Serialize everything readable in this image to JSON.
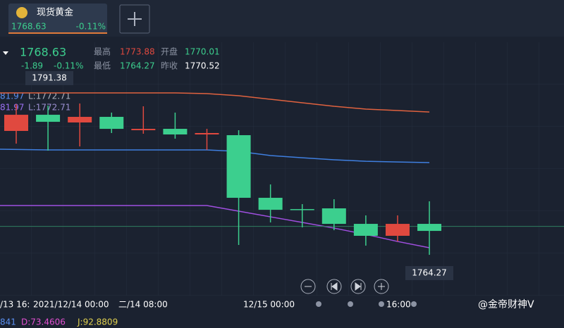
{
  "tab": {
    "name": "现货黄金"
  },
  "quote": {
    "change": "-1.89",
    "change_pct": "-0.11%",
    "high_label": "最高",
    "high": "1773.88",
    "open_label": "开盘",
    "open": "1770.01",
    "low_label": "最低",
    "low": "1764.27",
    "prev_close_label": "昨收",
    "prev_close": "1770.52"
  },
  "indicators": {
    "boll": [
      {
        "value": "81.97",
        "l": "L:1772.71"
      },
      {
        "value": "81.97",
        "l": "L:1772.71"
      }
    ],
    "kdj": [
      "841",
      "D:73.4606",
      "J:92.8809"
    ]
  },
  "watermark": "@金帝财神V",
  "chart_data": {
    "type": "candlestick",
    "ylim": [
      1758.55,
      1796.89
    ],
    "up_color": "#e0493f",
    "down_color": "#3ccf8e",
    "open": [
      1783.28,
      1785.76,
      1784.58,
      1785.44,
      1783.39,
      1783.6,
      1782.74,
      1782.63,
      1773.02,
      1771.29,
      1771.4,
      1769.02,
      1767.19,
      1769.02
    ],
    "high": [
      1787.38,
      1787.17,
      1787.49,
      1786.09,
      1787.06,
      1786.09,
      1783.6,
      1783.39,
      1775.07,
      1772.05,
      1772.8,
      1770.32,
      1770.32,
      1772.48
    ],
    "low": [
      1781.33,
      1780.26,
      1780.9,
      1782.96,
      1782.85,
      1782.09,
      1780.36,
      1765.78,
      1769.24,
      1768.48,
      1768.05,
      1765.68,
      1766.32,
      1764.27
    ],
    "close": [
      1785.76,
      1784.68,
      1785.44,
      1783.6,
      1783.6,
      1782.74,
      1782.96,
      1773.02,
      1771.18,
      1771.18,
      1769.02,
      1767.19,
      1769.02,
      1767.94
    ],
    "bands": [
      {
        "color": "#e0623f",
        "values": [
          1789.11,
          1789.11,
          1789.11,
          1789.11,
          1789.11,
          1789.11,
          1789.01,
          1788.68,
          1788.14,
          1787.6,
          1787.06,
          1786.63,
          1786.41,
          1786.19
        ]
      },
      {
        "color": "#3f7fe0",
        "values": [
          1780.47,
          1780.36,
          1780.36,
          1780.36,
          1780.36,
          1780.36,
          1780.36,
          1780.14,
          1779.5,
          1779.17,
          1778.85,
          1778.63,
          1778.52,
          1778.42
        ]
      },
      {
        "color": "#a04fe0",
        "values": [
          1771.83,
          1771.83,
          1771.83,
          1771.83,
          1771.83,
          1771.83,
          1771.83,
          1770.97,
          1770.1,
          1769.24,
          1768.37,
          1767.4,
          1766.32,
          1765.35
        ]
      }
    ],
    "last": 1768.63,
    "high_marker": 1791.38,
    "low_marker": 1764.27,
    "x_labels": [
      "/13 16:",
      "2021/12/14 00:00",
      "二/14 08:00",
      "12/15 00:00",
      "16:00"
    ]
  }
}
